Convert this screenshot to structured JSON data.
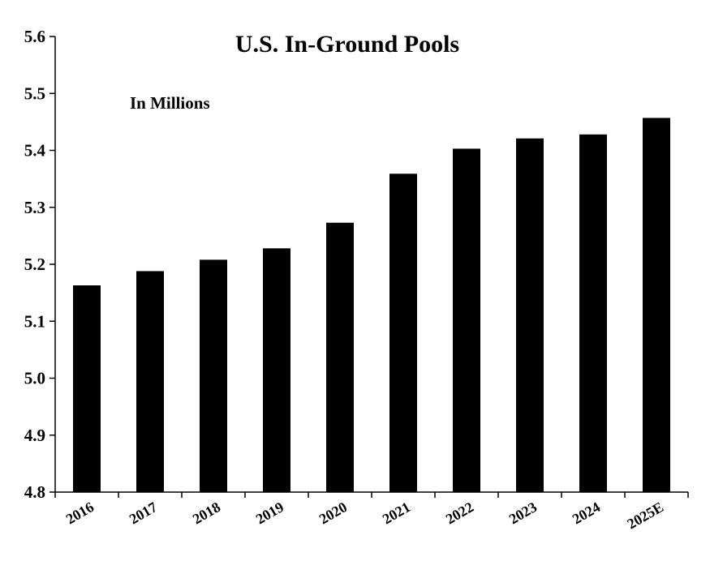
{
  "chart_data": {
    "type": "bar",
    "title": "U.S. In-Ground Pools",
    "subtitle": "In Millions",
    "xlabel": "",
    "ylabel": "",
    "categories": [
      "2016",
      "2017",
      "2018",
      "2019",
      "2020",
      "2021",
      "2022",
      "2023",
      "2024",
      "2025E"
    ],
    "series": [
      {
        "values": [
          5.163,
          5.188,
          5.208,
          5.228,
          5.273,
          5.359,
          5.403,
          5.421,
          5.428,
          5.457
        ],
        "color": "#000000"
      }
    ],
    "ylim": [
      4.8,
      5.6
    ],
    "yticks": [
      "4.8",
      "4.9",
      "5.0",
      "5.1",
      "5.2",
      "5.3",
      "5.4",
      "5.5",
      "5.6"
    ],
    "ytick_values": [
      4.8,
      4.9,
      5.0,
      5.1,
      5.2,
      5.3,
      5.4,
      5.5,
      5.6
    ],
    "grid": false,
    "legend": "none"
  }
}
